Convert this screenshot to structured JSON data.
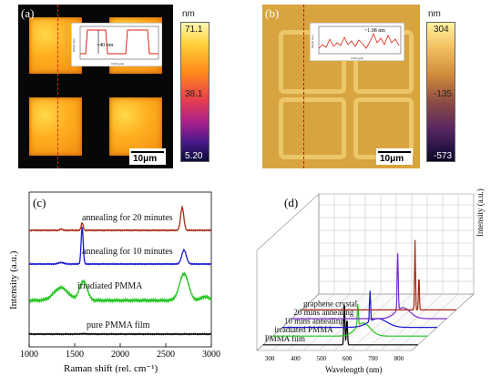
{
  "panel_a": {
    "label": "(a)",
    "unit": "nm",
    "scale_max": "71.1",
    "scale_mid": "38.1",
    "scale_min": "5.20",
    "scalebar": "10μm",
    "inset_annotation": "~40 nm",
    "inset_ylabel": "Height (nm)",
    "inset_xlabel": "Width (μm)"
  },
  "panel_b": {
    "label": "(b)",
    "unit": "nm",
    "scale_max": "304",
    "scale_mid": "-135",
    "scale_min": "-573",
    "scalebar": "10μm",
    "inset_annotation": "~1.08 nm",
    "inset_ylabel": "Height (nm)",
    "inset_xlabel": "Width (μm)"
  },
  "chart_data": [
    {
      "type": "line",
      "panel_label": "(c)",
      "xlabel": "Raman shift (rel. cm⁻¹)",
      "ylabel": "Intensity  (a.u.)",
      "xlim": [
        1000,
        3000
      ],
      "x_ticks": [
        "1000",
        "1500",
        "2000",
        "2500",
        "3000"
      ],
      "series": [
        {
          "name": "pure PMMA film",
          "color": "#000000",
          "offset": 0,
          "peaks": [
            [
              1600,
              0.01,
              60
            ]
          ]
        },
        {
          "name": "irradiated PMMA",
          "color": "#22c41e",
          "offset": 1,
          "peaks": [
            [
              1350,
              0.5,
              110
            ],
            [
              1595,
              0.75,
              60
            ],
            [
              2700,
              1.05,
              70
            ],
            [
              2930,
              0.15,
              60
            ]
          ]
        },
        {
          "name": "annealing for 10 minutes",
          "color": "#1a1acc",
          "offset": 2,
          "peaks": [
            [
              1350,
              0.06,
              40
            ],
            [
              1582,
              1.45,
              16
            ],
            [
              2700,
              0.55,
              35
            ]
          ]
        },
        {
          "name": "annealing for 20 minutes",
          "color": "#a52a10",
          "offset": 3,
          "peaks": [
            [
              1350,
              0.05,
              20
            ],
            [
              1582,
              0.3,
              15
            ],
            [
              2680,
              0.9,
              25
            ]
          ]
        }
      ]
    },
    {
      "type": "line",
      "panel_label": "(d)",
      "xlabel": "Wavelength (nm)",
      "ylabel": "Intensity (a.u.)",
      "xlim": [
        250,
        850
      ],
      "x_ticks": [
        "300",
        "400",
        "500",
        "600",
        "700",
        "800"
      ],
      "series": [
        {
          "name": "PMMA film",
          "color": "#000000",
          "peaks": [
            [
              565,
              1.0,
              3
            ],
            [
              575,
              0.6,
              3
            ]
          ]
        },
        {
          "name": "irradiated PMMA",
          "color": "#22c41e",
          "peaks": [
            [
              580,
              0.5,
              3
            ],
            [
              600,
              0.3,
              40
            ]
          ]
        },
        {
          "name": "10 mins annealing",
          "color": "#1a1acc",
          "peaks": [
            [
              590,
              0.7,
              3
            ],
            [
              620,
              0.2,
              50
            ]
          ]
        },
        {
          "name": "20 mins annealing",
          "color": "#7a2bd0",
          "peaks": [
            [
              660,
              1.3,
              3
            ],
            [
              680,
              0.25,
              40
            ]
          ]
        },
        {
          "name": "graphene crystal",
          "color": "#a52a10",
          "peaks": [
            [
              690,
              1.6,
              2.5
            ],
            [
              705,
              0.8,
              2.5
            ]
          ]
        }
      ]
    }
  ]
}
